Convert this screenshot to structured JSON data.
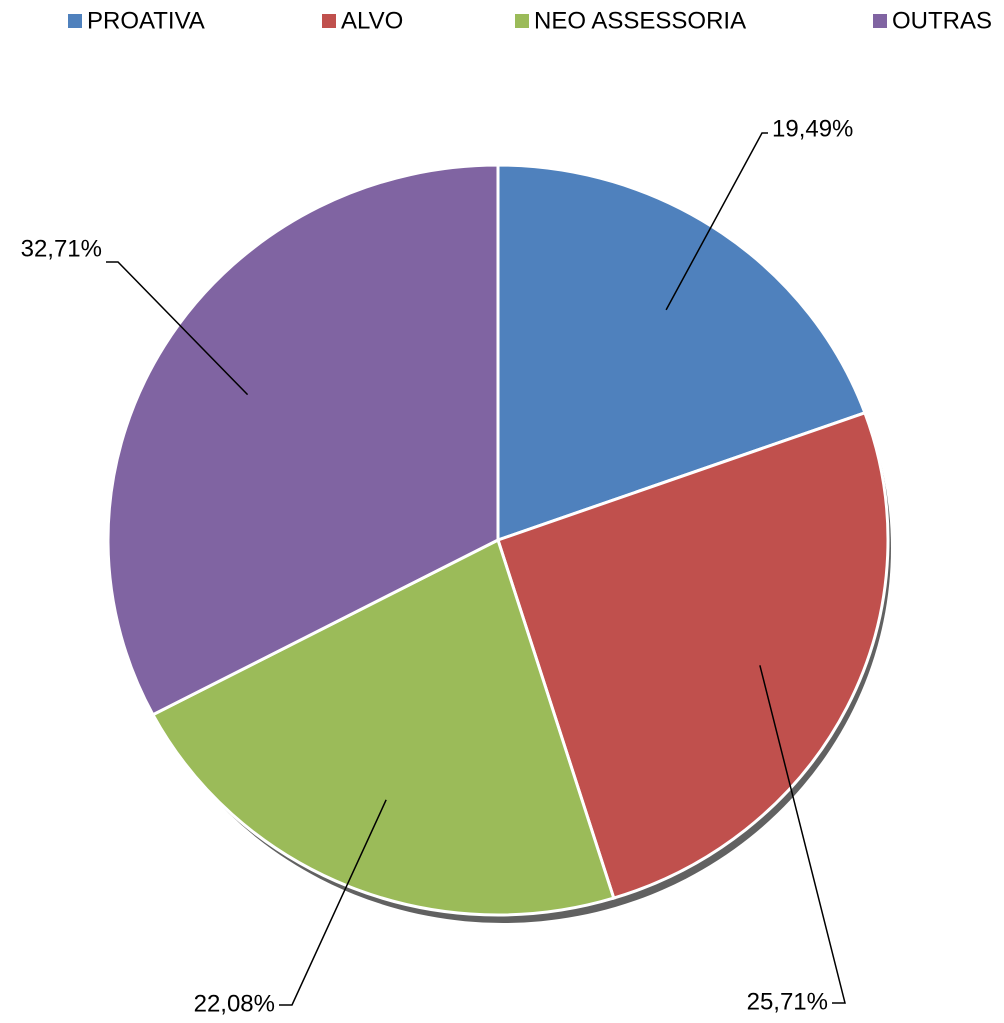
{
  "chart_data": {
    "type": "pie",
    "categories": [
      "PROATIVA",
      "ALVO",
      "NEO ASSESSORIA",
      "OUTRAS"
    ],
    "values": [
      19.49,
      25.71,
      22.08,
      32.71
    ],
    "value_labels": [
      "19,49%",
      "25,71%",
      "22,08%",
      "32,71%"
    ],
    "colors": [
      "#4f81bd",
      "#c0504d",
      "#9bbb59",
      "#8064a2"
    ],
    "legend": "top"
  }
}
